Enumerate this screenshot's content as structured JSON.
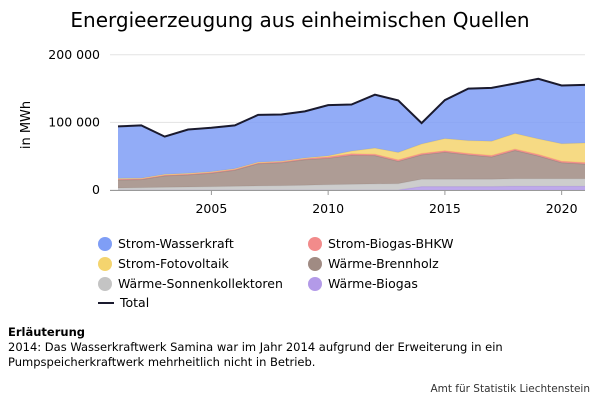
{
  "title": "Energieerzeugung aus einheimischen Quellen",
  "ylabel": "in MWh",
  "note": {
    "heading": "Erläuterung",
    "text": "2014: Das Wasserkraftwerk Samina war im Jahr 2014 aufgrund der Erweiterung in ein Pumpspeicherkraftwerk mehrheitlich nicht in Betrieb."
  },
  "source": "Amt für Statistik Liechtenstein",
  "legend": [
    {
      "label": "Strom-Wasserkraft",
      "color": "#7f9ef6",
      "kind": "dot"
    },
    {
      "label": "Strom-Biogas-BHKW",
      "color": "#f28b8b",
      "kind": "dot"
    },
    {
      "label": "Strom-Fotovoltaik",
      "color": "#f4d46e",
      "kind": "dot"
    },
    {
      "label": "Wärme-Brennholz",
      "color": "#a08b83",
      "kind": "dot"
    },
    {
      "label": "Wärme-Sonnenkollektoren",
      "color": "#c4c4c4",
      "kind": "dot"
    },
    {
      "label": "Wärme-Biogas",
      "color": "#b39ae8",
      "kind": "dot"
    },
    {
      "label": "Total",
      "color": "#1a1a2e",
      "kind": "line"
    }
  ],
  "chart_data": {
    "type": "area",
    "stacked": true,
    "x": [
      2001,
      2002,
      2003,
      2004,
      2005,
      2006,
      2007,
      2008,
      2009,
      2010,
      2011,
      2012,
      2013,
      2014,
      2015,
      2016,
      2017,
      2018,
      2019,
      2020,
      2021
    ],
    "xticks": [
      2005,
      2010,
      2015,
      2020
    ],
    "yticks": [
      0,
      100000,
      200000
    ],
    "ytick_labels": [
      "0",
      "100 000",
      "200 000"
    ],
    "ylim": [
      0,
      210000
    ],
    "xlim": [
      2001,
      2021
    ],
    "grid": true,
    "series": [
      {
        "name": "Wärme-Biogas",
        "color": "#b39ae8",
        "values": [
          0,
          0,
          0,
          0,
          0,
          0,
          0,
          0,
          0,
          0,
          0,
          0,
          0,
          5000,
          5000,
          5000,
          5000,
          5500,
          5500,
          5500,
          5500
        ]
      },
      {
        "name": "Wärme-Sonnenkollektoren",
        "color": "#c4c4c4",
        "values": [
          3000,
          3500,
          4000,
          4500,
          5000,
          5500,
          6000,
          6500,
          7000,
          8000,
          8500,
          9000,
          9500,
          11000,
          11000,
          11000,
          11000,
          11000,
          11000,
          11000,
          11000
        ]
      },
      {
        "name": "Wärme-Brennholz",
        "color": "#a08b83",
        "values": [
          12000,
          12000,
          17000,
          18000,
          20000,
          24000,
          33000,
          34000,
          38000,
          39000,
          43000,
          42000,
          33000,
          36000,
          40000,
          36000,
          33000,
          42000,
          34000,
          24000,
          22000
        ]
      },
      {
        "name": "Strom-Biogas-BHKW",
        "color": "#f28b8b",
        "values": [
          2000,
          2000,
          2000,
          2000,
          2000,
          2000,
          2000,
          2000,
          2000,
          2000,
          2000,
          2000,
          2000,
          2000,
          2000,
          2000,
          2000,
          2000,
          2000,
          2000,
          2000
        ]
      },
      {
        "name": "Strom-Fotovoltaik",
        "color": "#f4d46e",
        "values": [
          0,
          0,
          0,
          0,
          0,
          0,
          0,
          100,
          300,
          1500,
          4000,
          9000,
          11000,
          14000,
          18000,
          19000,
          21000,
          23000,
          23000,
          26000,
          29000
        ]
      },
      {
        "name": "Strom-Wasserkraft",
        "color": "#7f9ef6",
        "values": [
          77000,
          78000,
          56000,
          65000,
          65000,
          64000,
          70000,
          69000,
          69000,
          75000,
          69000,
          79000,
          77000,
          31000,
          57000,
          77000,
          79000,
          74000,
          89000,
          86000,
          86000
        ]
      }
    ],
    "total": {
      "name": "Total",
      "color": "#1a1a2e",
      "values": [
        94000,
        95500,
        79000,
        89500,
        92000,
        95500,
        111000,
        111600,
        116300,
        125500,
        126500,
        141000,
        132500,
        99000,
        133000,
        150000,
        151000,
        157500,
        164500,
        154500,
        155500
      ]
    }
  }
}
